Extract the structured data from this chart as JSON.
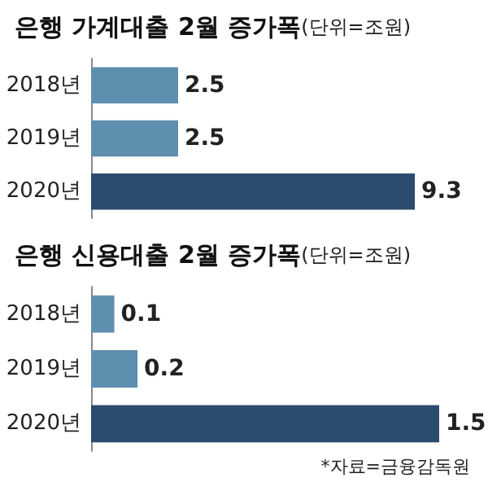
{
  "chart_data": [
    {
      "type": "bar",
      "title": "은행 가계대출 2월 증가폭",
      "subtitle": "(단위=조원)",
      "orientation": "horizontal",
      "categories": [
        "2018년",
        "2019년",
        "2020년"
      ],
      "values": [
        2.5,
        2.5,
        9.3
      ],
      "colors": [
        "#5f8fae",
        "#5f8fae",
        "#2b4c6e"
      ],
      "data_labels": true,
      "tick_labels": "y"
    },
    {
      "type": "bar",
      "title": "은행 신용대출 2월 증가폭",
      "subtitle": "(단위=조원)",
      "orientation": "horizontal",
      "categories": [
        "2018년",
        "2019년",
        "2020년"
      ],
      "values": [
        0.1,
        0.2,
        1.5
      ],
      "colors": [
        "#5f8fae",
        "#5f8fae",
        "#2b4c6e"
      ],
      "data_labels": true,
      "tick_labels": "y",
      "annotations": [
        "*자료=금융감독원"
      ]
    }
  ]
}
